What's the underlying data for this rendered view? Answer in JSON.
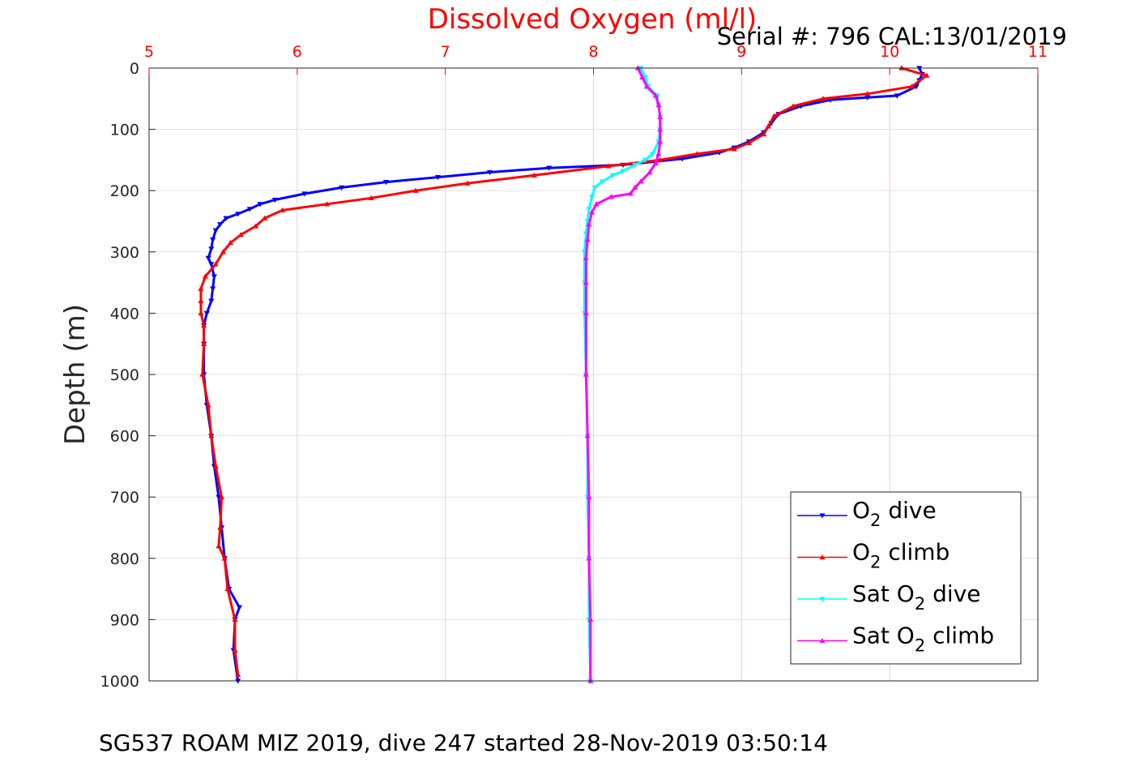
{
  "chart_data": {
    "type": "line",
    "title": "Dissolved Oxygen (ml/l)",
    "subtitle": "Serial #: 796  CAL:13/01/2019",
    "footer": "SG537 ROAM MIZ 2019, dive 247 started 28-Nov-2019 03:50:14",
    "ylabel": "Depth (m)",
    "xlabel": "",
    "xlim": [
      5,
      11
    ],
    "ylim": [
      0,
      1000
    ],
    "y_reversed": true,
    "x_axis_position": "top",
    "grid": true,
    "legend_position": "bottom-right",
    "x_ticks": [
      "5",
      "6",
      "7",
      "8",
      "9",
      "10",
      "11"
    ],
    "y_ticks": [
      "0",
      "100",
      "200",
      "300",
      "400",
      "500",
      "600",
      "700",
      "800",
      "900",
      "1000"
    ],
    "colors": {
      "title": "#ff0000",
      "xticks": "#ff0000",
      "grid": "#ffc8c8"
    },
    "series": [
      {
        "name": "O2 dive",
        "label_parts": [
          "O",
          "2",
          " dive"
        ],
        "color": "#0000ff",
        "marker": "triangle-down",
        "points": [
          [
            10.2,
            0
          ],
          [
            10.22,
            10
          ],
          [
            10.2,
            20
          ],
          [
            10.18,
            30
          ],
          [
            10.05,
            45
          ],
          [
            9.85,
            48
          ],
          [
            9.6,
            52
          ],
          [
            9.4,
            62
          ],
          [
            9.25,
            75
          ],
          [
            9.2,
            90
          ],
          [
            9.15,
            105
          ],
          [
            9.05,
            120
          ],
          [
            8.95,
            130
          ],
          [
            8.85,
            138
          ],
          [
            8.6,
            148
          ],
          [
            8.2,
            158
          ],
          [
            7.7,
            163
          ],
          [
            7.3,
            170
          ],
          [
            6.95,
            178
          ],
          [
            6.6,
            186
          ],
          [
            6.3,
            195
          ],
          [
            6.05,
            205
          ],
          [
            5.85,
            215
          ],
          [
            5.75,
            222
          ],
          [
            5.68,
            230
          ],
          [
            5.6,
            238
          ],
          [
            5.52,
            245
          ],
          [
            5.48,
            255
          ],
          [
            5.45,
            265
          ],
          [
            5.43,
            280
          ],
          [
            5.42,
            295
          ],
          [
            5.4,
            310
          ],
          [
            5.42,
            320
          ],
          [
            5.44,
            340
          ],
          [
            5.43,
            360
          ],
          [
            5.42,
            380
          ],
          [
            5.39,
            400
          ],
          [
            5.37,
            420
          ],
          [
            5.37,
            450
          ],
          [
            5.37,
            500
          ],
          [
            5.39,
            550
          ],
          [
            5.42,
            600
          ],
          [
            5.44,
            650
          ],
          [
            5.47,
            700
          ],
          [
            5.49,
            750
          ],
          [
            5.51,
            800
          ],
          [
            5.54,
            850
          ],
          [
            5.61,
            880
          ],
          [
            5.58,
            900
          ],
          [
            5.57,
            950
          ],
          [
            5.6,
            1000
          ]
        ]
      },
      {
        "name": "O2 climb",
        "label_parts": [
          "O",
          "2",
          " climb"
        ],
        "color": "#ff0000",
        "marker": "triangle-up",
        "points": [
          [
            10.08,
            0
          ],
          [
            10.25,
            12
          ],
          [
            10.15,
            30
          ],
          [
            9.85,
            42
          ],
          [
            9.55,
            50
          ],
          [
            9.35,
            62
          ],
          [
            9.22,
            78
          ],
          [
            9.18,
            95
          ],
          [
            9.15,
            108
          ],
          [
            9.05,
            122
          ],
          [
            8.95,
            132
          ],
          [
            8.7,
            140
          ],
          [
            8.45,
            150
          ],
          [
            8.1,
            160
          ],
          [
            7.6,
            175
          ],
          [
            7.15,
            188
          ],
          [
            6.8,
            200
          ],
          [
            6.5,
            212
          ],
          [
            6.2,
            222
          ],
          [
            5.9,
            232
          ],
          [
            5.78,
            245
          ],
          [
            5.72,
            258
          ],
          [
            5.62,
            272
          ],
          [
            5.55,
            285
          ],
          [
            5.5,
            300
          ],
          [
            5.45,
            320
          ],
          [
            5.38,
            340
          ],
          [
            5.35,
            360
          ],
          [
            5.35,
            380
          ],
          [
            5.35,
            400
          ],
          [
            5.37,
            420
          ],
          [
            5.37,
            450
          ],
          [
            5.36,
            500
          ],
          [
            5.4,
            550
          ],
          [
            5.42,
            600
          ],
          [
            5.45,
            650
          ],
          [
            5.49,
            700
          ],
          [
            5.48,
            750
          ],
          [
            5.47,
            780
          ],
          [
            5.51,
            800
          ],
          [
            5.53,
            850
          ],
          [
            5.58,
            900
          ],
          [
            5.58,
            950
          ],
          [
            5.6,
            990
          ]
        ]
      },
      {
        "name": "Sat O2 dive",
        "label_parts": [
          "Sat O",
          "2",
          " dive"
        ],
        "color": "#00ffff",
        "marker": "triangle-down",
        "points": [
          [
            8.32,
            0
          ],
          [
            8.35,
            15
          ],
          [
            8.37,
            30
          ],
          [
            8.43,
            45
          ],
          [
            8.44,
            60
          ],
          [
            8.45,
            80
          ],
          [
            8.45,
            100
          ],
          [
            8.44,
            120
          ],
          [
            8.4,
            140
          ],
          [
            8.35,
            150
          ],
          [
            8.28,
            158
          ],
          [
            8.2,
            168
          ],
          [
            8.13,
            175
          ],
          [
            8.06,
            185
          ],
          [
            8.01,
            195
          ],
          [
            7.99,
            210
          ],
          [
            7.97,
            230
          ],
          [
            7.96,
            250
          ],
          [
            7.95,
            270
          ],
          [
            7.94,
            300
          ],
          [
            7.94,
            350
          ],
          [
            7.94,
            400
          ],
          [
            7.95,
            500
          ],
          [
            7.96,
            600
          ],
          [
            7.96,
            700
          ],
          [
            7.97,
            800
          ],
          [
            7.97,
            900
          ],
          [
            7.98,
            1000
          ]
        ]
      },
      {
        "name": "Sat O2 climb",
        "label_parts": [
          "Sat O",
          "2",
          " climb"
        ],
        "color": "#ff00ff",
        "marker": "triangle-up",
        "points": [
          [
            8.3,
            0
          ],
          [
            8.33,
            15
          ],
          [
            8.36,
            30
          ],
          [
            8.42,
            45
          ],
          [
            8.44,
            60
          ],
          [
            8.45,
            80
          ],
          [
            8.45,
            100
          ],
          [
            8.45,
            120
          ],
          [
            8.44,
            140
          ],
          [
            8.42,
            155
          ],
          [
            8.38,
            170
          ],
          [
            8.32,
            185
          ],
          [
            8.28,
            195
          ],
          [
            8.25,
            205
          ],
          [
            8.12,
            210
          ],
          [
            8.02,
            222
          ],
          [
            7.99,
            235
          ],
          [
            7.97,
            255
          ],
          [
            7.96,
            280
          ],
          [
            7.95,
            310
          ],
          [
            7.95,
            350
          ],
          [
            7.95,
            400
          ],
          [
            7.95,
            500
          ],
          [
            7.96,
            600
          ],
          [
            7.97,
            700
          ],
          [
            7.97,
            800
          ],
          [
            7.98,
            900
          ],
          [
            7.98,
            1000
          ]
        ]
      }
    ]
  }
}
